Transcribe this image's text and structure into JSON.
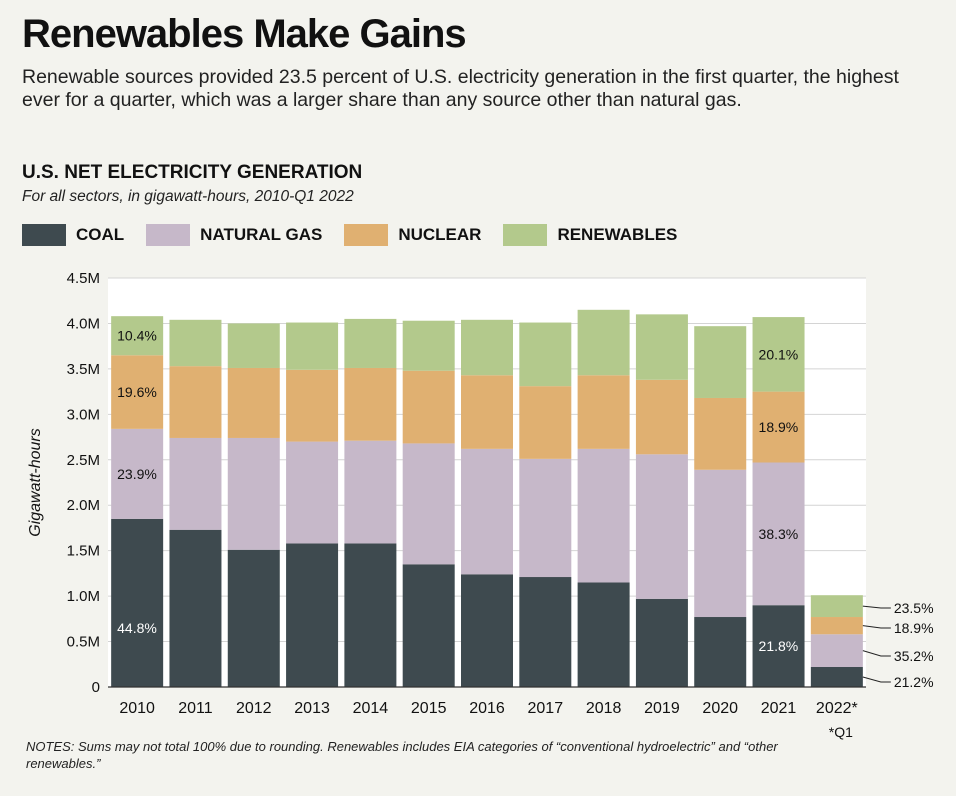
{
  "header": {
    "title": "Renewables Make Gains",
    "dek": "Renewable sources provided 23.5 percent of U.S. electricity generation in the first quarter, the highest ever for a quarter, which was a larger share than any source other than natural gas."
  },
  "notes": "NOTES: Sums may not total 100% due to rounding. Renewables includes EIA categories of “conventional hydroelectric” and “other renewables.”",
  "chart_data": {
    "type": "bar",
    "stacked": true,
    "title": "U.S. NET ELECTRICITY GENERATION",
    "subtitle": "For all sectors, in gigawatt-hours, 2010-Q1 2022",
    "xlabel": "",
    "ylabel": "Gigawatt-hours",
    "ylim": [
      0,
      4500000
    ],
    "yticks": [
      0,
      500000,
      1000000,
      1500000,
      2000000,
      2500000,
      3000000,
      3500000,
      4000000,
      4500000
    ],
    "ytick_labels": [
      "0",
      "0.5M",
      "1.0M",
      "1.5M",
      "2.0M",
      "2.5M",
      "3.0M",
      "3.5M",
      "4.0M",
      "4.5M"
    ],
    "grid": true,
    "legend_position": "top-left",
    "categories": [
      "2010",
      "2011",
      "2012",
      "2013",
      "2014",
      "2015",
      "2016",
      "2017",
      "2018",
      "2019",
      "2020",
      "2021",
      "2022*"
    ],
    "category_footnote": "*Q1",
    "series": [
      {
        "name": "COAL",
        "color": "#3e4a4f",
        "values": [
          1850000,
          1730000,
          1510000,
          1580000,
          1580000,
          1350000,
          1240000,
          1210000,
          1150000,
          970000,
          770000,
          900000,
          220000
        ]
      },
      {
        "name": "NATURAL GAS",
        "color": "#c6b8c9",
        "values": [
          990000,
          1010000,
          1230000,
          1120000,
          1130000,
          1330000,
          1380000,
          1300000,
          1470000,
          1590000,
          1620000,
          1570000,
          360000
        ]
      },
      {
        "name": "NUCLEAR",
        "color": "#e0b071",
        "values": [
          810000,
          790000,
          770000,
          790000,
          800000,
          800000,
          810000,
          800000,
          810000,
          820000,
          790000,
          780000,
          190000
        ]
      },
      {
        "name": "RENEWABLES",
        "color": "#b3c98c",
        "values": [
          430000,
          510000,
          490000,
          520000,
          540000,
          550000,
          610000,
          700000,
          720000,
          720000,
          790000,
          820000,
          240000
        ]
      }
    ],
    "annotations": [
      {
        "category": "2010",
        "series": "COAL",
        "text": "44.8%"
      },
      {
        "category": "2010",
        "series": "NATURAL GAS",
        "text": "23.9%"
      },
      {
        "category": "2010",
        "series": "NUCLEAR",
        "text": "19.6%"
      },
      {
        "category": "2010",
        "series": "RENEWABLES",
        "text": "10.4%"
      },
      {
        "category": "2021",
        "series": "COAL",
        "text": "21.8%"
      },
      {
        "category": "2021",
        "series": "NATURAL GAS",
        "text": "38.3%"
      },
      {
        "category": "2021",
        "series": "NUCLEAR",
        "text": "18.9%"
      },
      {
        "category": "2021",
        "series": "RENEWABLES",
        "text": "20.1%"
      },
      {
        "category": "2022*",
        "series": "RENEWABLES",
        "text": "23.5%"
      },
      {
        "category": "2022*",
        "series": "NUCLEAR",
        "text": "18.9%"
      },
      {
        "category": "2022*",
        "series": "NATURAL GAS",
        "text": "35.2%"
      },
      {
        "category": "2022*",
        "series": "COAL",
        "text": "21.2%"
      }
    ]
  }
}
